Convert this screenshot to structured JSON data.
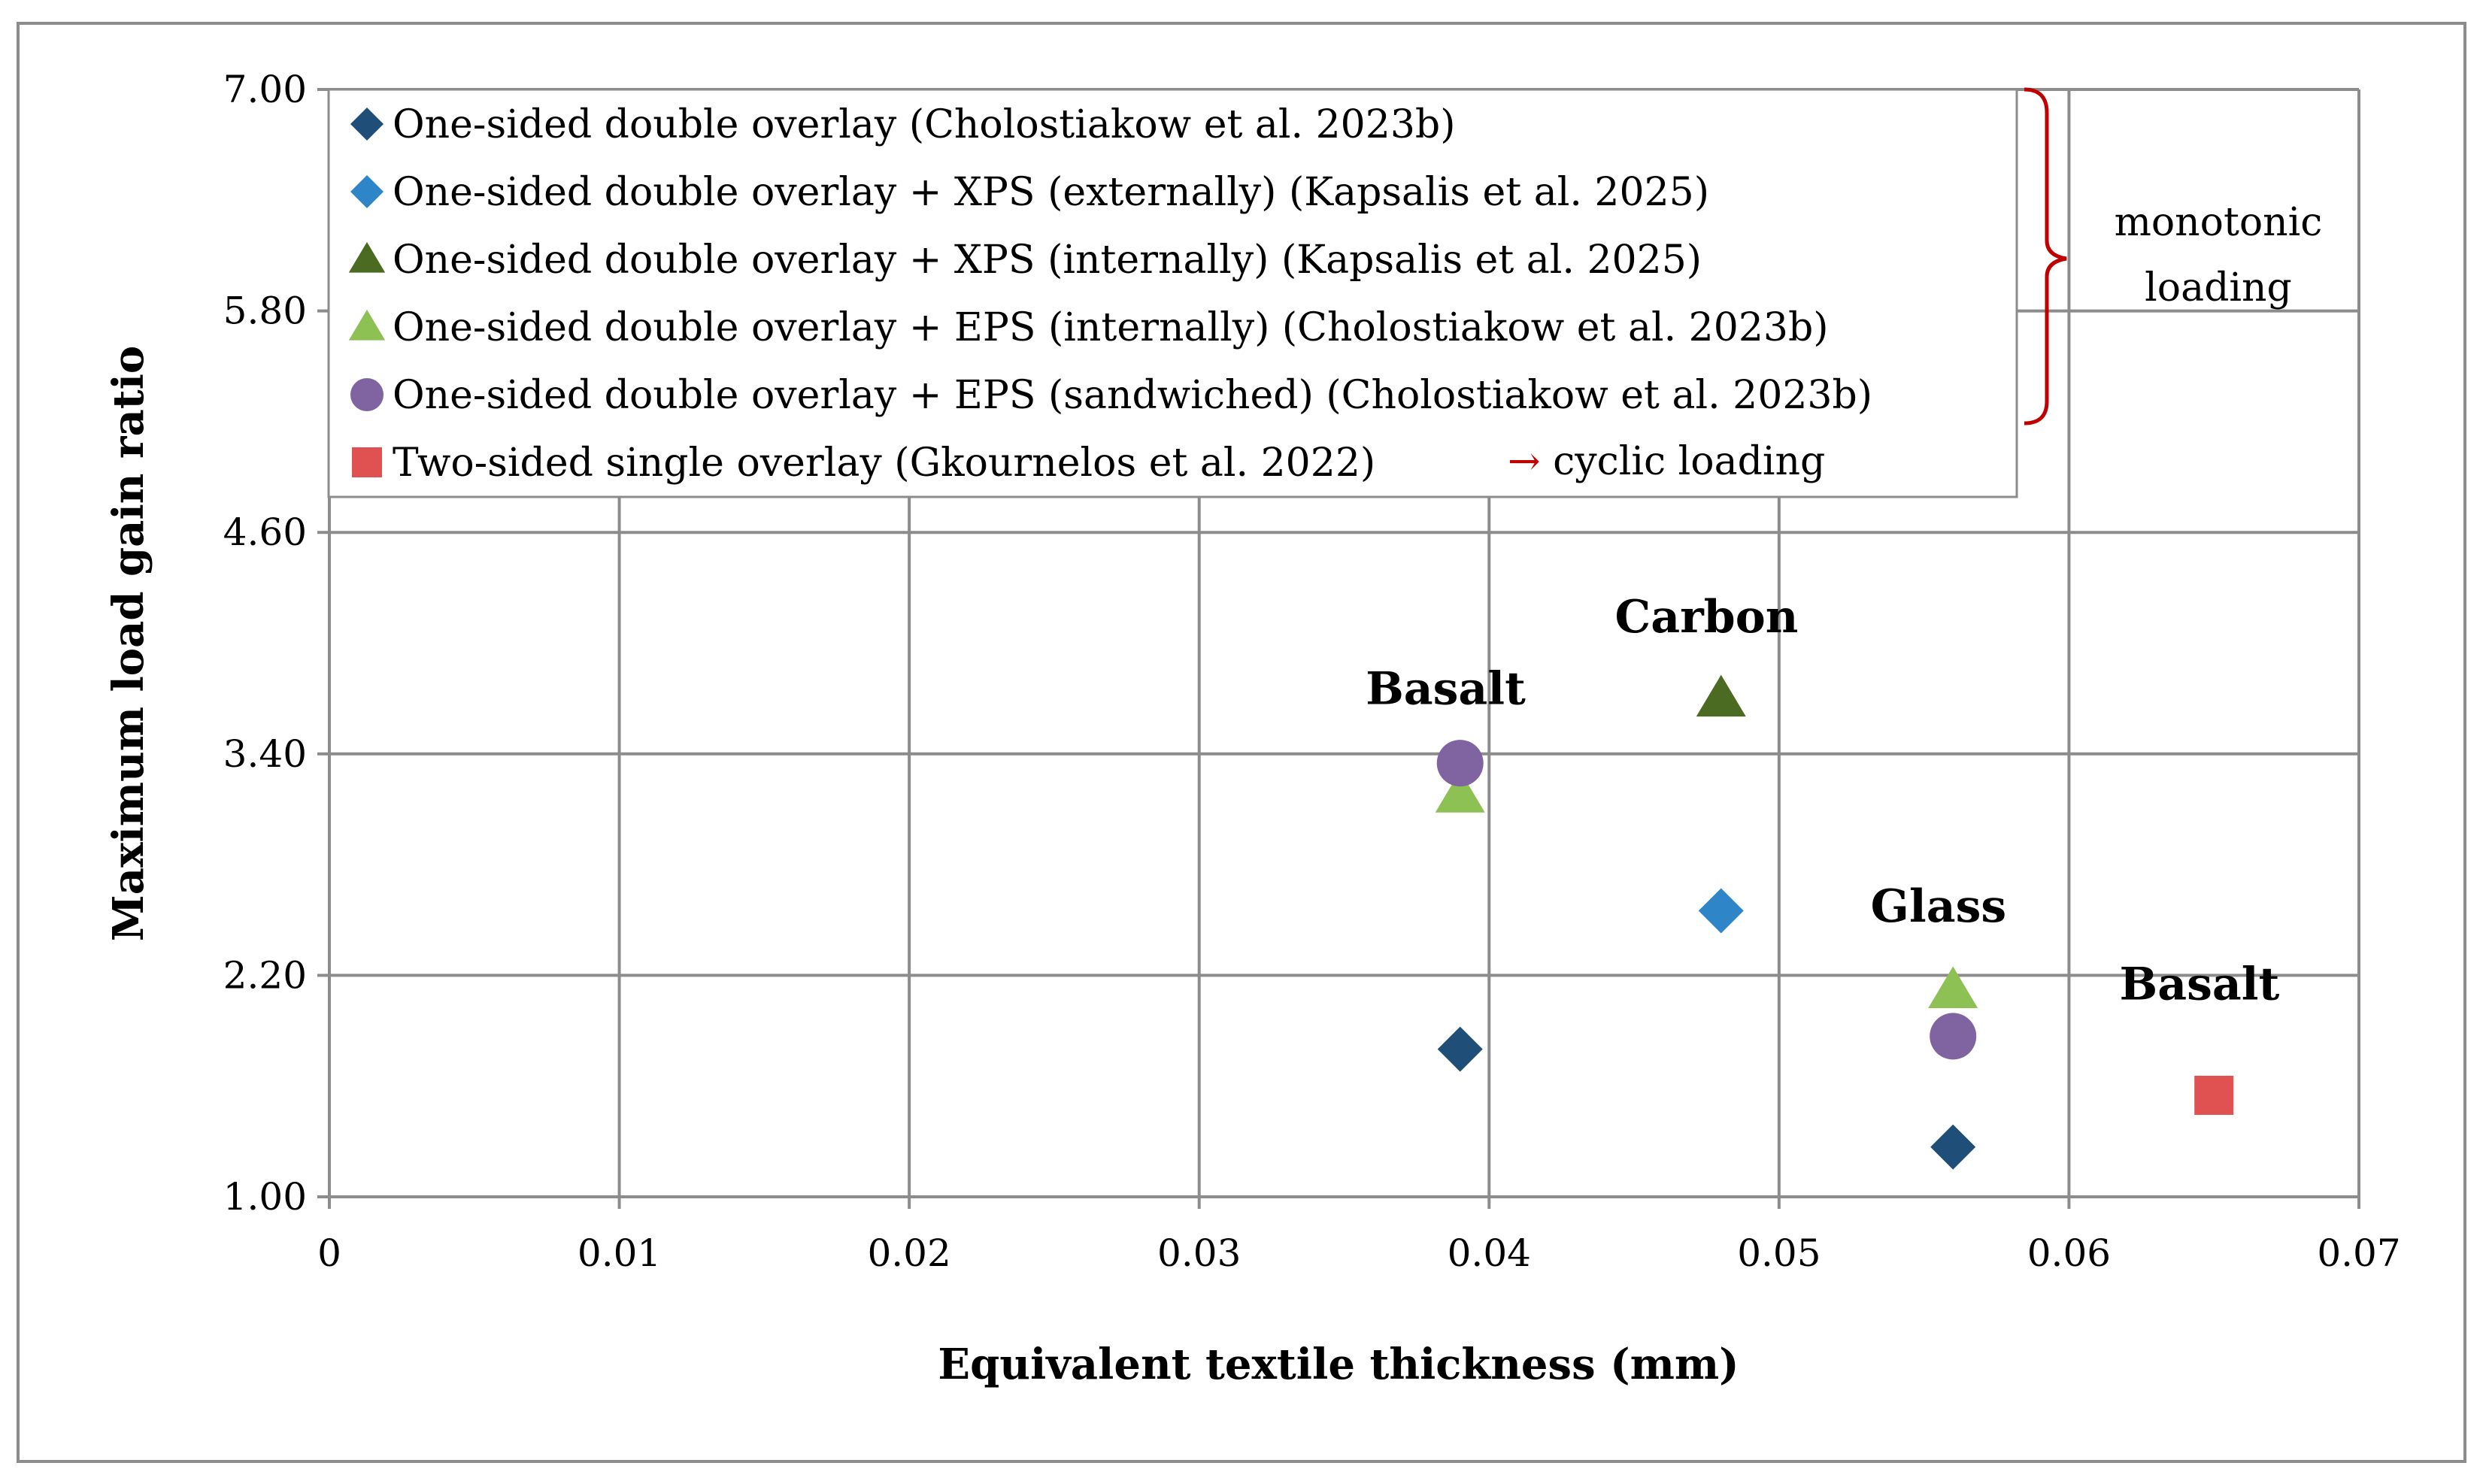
{
  "chart_data": {
    "type": "scatter",
    "title": "",
    "xlabel": "Equivalent textile thickness (mm)",
    "ylabel": "Maximum load gain ratio",
    "xlim": [
      0,
      0.07
    ],
    "ylim": [
      1.0,
      7.0
    ],
    "x_ticks": [
      "0",
      "0.01",
      "0.02",
      "0.03",
      "0.04",
      "0.05",
      "0.06",
      "0.07"
    ],
    "x_tick_values": [
      0,
      0.01,
      0.02,
      0.03,
      0.04,
      0.05,
      0.06,
      0.07
    ],
    "y_ticks": [
      "1.00",
      "2.20",
      "3.40",
      "4.60",
      "5.80",
      "7.00"
    ],
    "y_tick_values": [
      1.0,
      2.2,
      3.4,
      4.6,
      5.8,
      7.0
    ],
    "grid": true,
    "series": [
      {
        "name": "One-sided double overlay (Cholostiakow et al. 2023b)",
        "marker": "diamond",
        "color": "#1f4e79",
        "points": [
          {
            "x": 0.039,
            "y": 1.8
          },
          {
            "x": 0.056,
            "y": 1.27
          }
        ]
      },
      {
        "name": "One-sided double overlay + XPS (externally) (Kapsalis et al. 2025)",
        "marker": "diamond",
        "color": "#2e86c9",
        "points": [
          {
            "x": 0.048,
            "y": 2.55
          }
        ]
      },
      {
        "name": "One-sided double overlay + XPS (internally) (Kapsalis et al. 2025)",
        "marker": "triangle",
        "color": "#4b6a22",
        "points": [
          {
            "x": 0.048,
            "y": 3.7
          }
        ]
      },
      {
        "name": "One-sided double overlay + EPS (internally) (Cholostiakow et al. 2023b)",
        "marker": "triangle",
        "color": "#8dc153",
        "points": [
          {
            "x": 0.039,
            "y": 3.18
          },
          {
            "x": 0.056,
            "y": 2.12
          }
        ]
      },
      {
        "name": "One-sided double overlay + EPS (sandwiched) (Cholostiakow et al. 2023b)",
        "marker": "circle",
        "color": "#8064a2",
        "points": [
          {
            "x": 0.039,
            "y": 3.35
          },
          {
            "x": 0.056,
            "y": 1.87
          }
        ]
      },
      {
        "name": "Two-sided single overlay (Gkournelos et al. 2022)",
        "marker": "square",
        "color": "#e05252",
        "points": [
          {
            "x": 0.065,
            "y": 1.55
          }
        ]
      }
    ],
    "annotations": [
      {
        "text": "Basalt",
        "x": 0.0385,
        "y": 3.67
      },
      {
        "text": "Carbon",
        "x": 0.0475,
        "y": 4.06
      },
      {
        "text": "Glass",
        "x": 0.0555,
        "y": 2.49
      },
      {
        "text": "Basalt",
        "x": 0.0645,
        "y": 2.07
      }
    ],
    "legend": {
      "position": "top-left",
      "arrow_note": "→ cyclic loading",
      "arrow_color": "#c00000"
    },
    "bracket_note": {
      "lines": [
        "monotonic",
        "loading"
      ],
      "color": "#c00000"
    }
  }
}
